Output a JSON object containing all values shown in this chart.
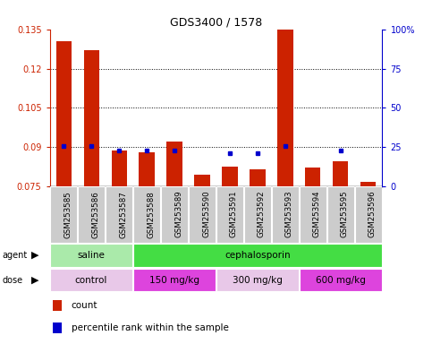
{
  "title": "GDS3400 / 1578",
  "samples": [
    "GSM253585",
    "GSM253586",
    "GSM253587",
    "GSM253588",
    "GSM253589",
    "GSM253590",
    "GSM253591",
    "GSM253592",
    "GSM253593",
    "GSM253594",
    "GSM253595",
    "GSM253596"
  ],
  "count_values": [
    0.1305,
    0.127,
    0.0885,
    0.088,
    0.092,
    0.0795,
    0.0825,
    0.0815,
    0.136,
    0.082,
    0.0845,
    0.0765
  ],
  "percentile_values": [
    0.0905,
    0.0905,
    0.0885,
    0.0885,
    0.0885,
    null,
    0.0875,
    0.0875,
    0.0905,
    null,
    0.0885,
    null
  ],
  "ylim_left": [
    0.075,
    0.135
  ],
  "yticks_left": [
    0.075,
    0.09,
    0.105,
    0.12,
    0.135
  ],
  "ytick_labels_left": [
    "0.075",
    "0.09",
    "0.105",
    "0.12",
    "0.135"
  ],
  "yticks_right": [
    0,
    25,
    50,
    75,
    100
  ],
  "ytick_labels_right": [
    "0",
    "25",
    "50",
    "75",
    "100%"
  ],
  "hlines": [
    0.09,
    0.105,
    0.12
  ],
  "agent_groups": [
    {
      "label": "saline",
      "start": 0,
      "end": 3,
      "color": "#aaeaaa"
    },
    {
      "label": "cephalosporin",
      "start": 3,
      "end": 12,
      "color": "#44dd44"
    }
  ],
  "dose_groups": [
    {
      "label": "control",
      "start": 0,
      "end": 3,
      "color": "#e8c8e8"
    },
    {
      "label": "150 mg/kg",
      "start": 3,
      "end": 6,
      "color": "#dd44dd"
    },
    {
      "label": "300 mg/kg",
      "start": 6,
      "end": 9,
      "color": "#e8c8e8"
    },
    {
      "label": "600 mg/kg",
      "start": 9,
      "end": 12,
      "color": "#dd44dd"
    }
  ],
  "count_color": "#cc2200",
  "percentile_color": "#0000cc",
  "bar_width": 0.55,
  "background_color": "#ffffff",
  "yaxis_left_color": "#cc2200",
  "yaxis_right_color": "#0000cc",
  "cell_color": "#cccccc",
  "cell_border": "#ffffff"
}
